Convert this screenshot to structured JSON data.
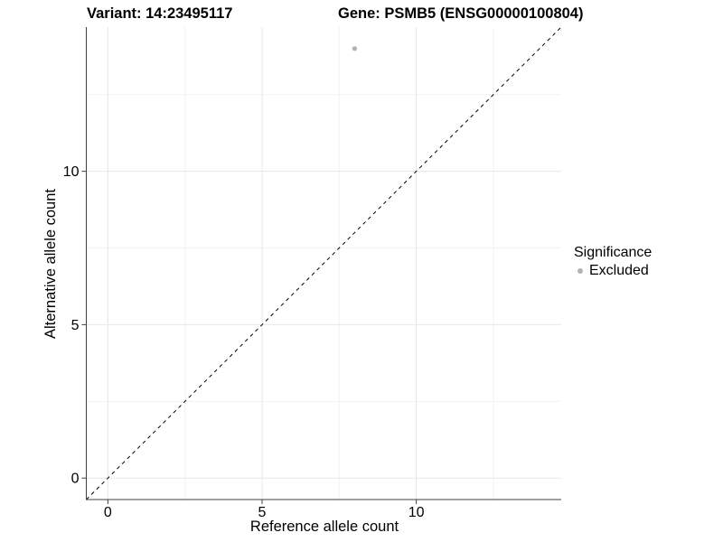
{
  "chart_data": {
    "type": "scatter",
    "title_left": "Variant: 14:23495117",
    "title_right": "Gene: PSMB5 (ENSG00000100804)",
    "xlabel": "Reference allele count",
    "ylabel": "Alternative allele count",
    "xlim": [
      -0.7,
      14.7
    ],
    "ylim": [
      -0.7,
      14.7
    ],
    "xticks": [
      0,
      5,
      10
    ],
    "yticks": [
      0,
      5,
      10
    ],
    "minor_ticks": [
      2.5,
      7.5,
      12.5
    ],
    "grid": true,
    "points": [
      {
        "x": 8,
        "y": 14,
        "series": "Excluded"
      }
    ],
    "reference_line": {
      "type": "identity",
      "style": "dashed",
      "color": "#000000"
    },
    "legend": {
      "title": "Significance",
      "position": "right",
      "entries": [
        {
          "label": "Excluded",
          "color": "#b3b3b3"
        }
      ]
    },
    "colors": {
      "point": "#b3b3b3",
      "grid_major": "#e8e8e8",
      "grid_minor": "#f2f2f2",
      "axis_line": "#404040",
      "tick_mark": "#404040",
      "text": "#000000",
      "background": "#ffffff"
    }
  }
}
